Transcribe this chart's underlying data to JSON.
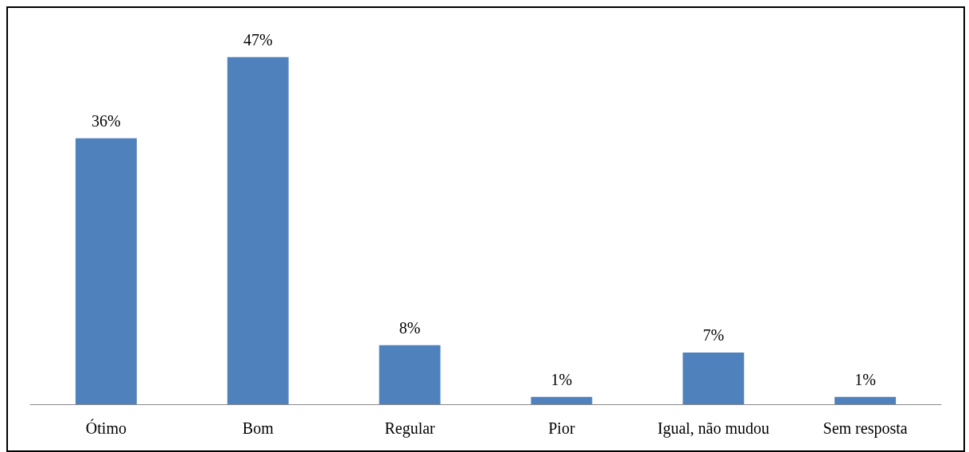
{
  "chart_data": {
    "type": "bar",
    "categories": [
      "Ótimo",
      "Bom",
      "Regular",
      "Pior",
      "Igual, não mudou",
      "Sem resposta"
    ],
    "values": [
      36,
      47,
      8,
      1,
      7,
      1
    ],
    "value_labels": [
      "36%",
      "47%",
      "8%",
      "1%",
      "7%",
      "1%"
    ],
    "color": "#4f81bd"
  }
}
